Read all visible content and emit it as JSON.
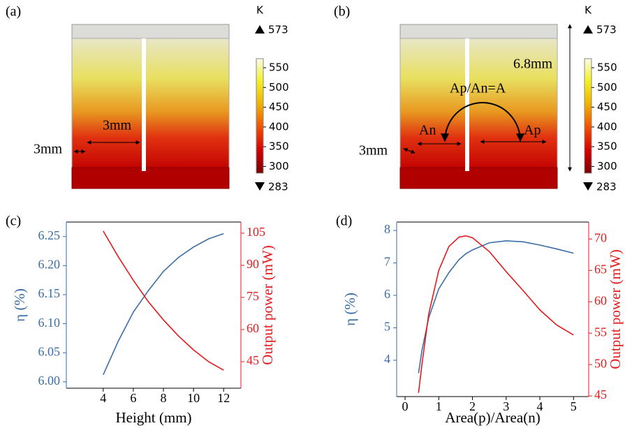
{
  "panels": [
    {
      "label": "(a)",
      "unit": "K",
      "max": 573,
      "min": 283,
      "ticks": [
        300,
        350,
        400,
        450,
        500,
        550
      ],
      "annotations": [
        "3mm",
        "3mm"
      ]
    },
    {
      "label": "(b)",
      "unit": "K",
      "max": 573,
      "min": 283,
      "ticks": [
        300,
        350,
        400,
        450,
        500,
        550
      ],
      "annotations": [
        "3mm",
        "An",
        "Ap",
        "Ap/An=A",
        "6.8mm"
      ]
    }
  ],
  "chart_data": [
    {
      "type": "line",
      "label": "(c)",
      "xlabel": "Height (mm)",
      "ylabel": "η (%)",
      "y2label": "Output power (mW)",
      "x": [
        4,
        5,
        6,
        7,
        8,
        9,
        10,
        11,
        12
      ],
      "series": [
        {
          "color": "#3a6ea5",
          "values": [
            6.012,
            6.07,
            6.12,
            6.157,
            6.19,
            6.214,
            6.232,
            6.246,
            6.255
          ]
        },
        {
          "color": "#e41a1c",
          "axis": "y2",
          "values": [
            106,
            94,
            83,
            73,
            64.5,
            57,
            50.5,
            45,
            41
          ]
        }
      ],
      "xlim": [
        1.55,
        13.15
      ],
      "xticks": [
        4,
        6,
        8,
        10,
        12
      ],
      "ylim": [
        5.989,
        6.275
      ],
      "yticks": [
        {
          "value": 6.0,
          "label": "6.00"
        },
        {
          "value": 6.05,
          "label": "6.05"
        },
        {
          "value": 6.1,
          "label": "6.10"
        },
        {
          "value": 6.15,
          "label": "6.15"
        },
        {
          "value": 6.2,
          "label": "6.20"
        },
        {
          "value": 6.25,
          "label": "6.25"
        }
      ],
      "y2lim": [
        32.6,
        110.2
      ],
      "y2ticks": [
        45,
        60,
        75,
        90,
        105
      ]
    },
    {
      "type": "line",
      "label": "(d)",
      "xlabel": "Area(p)/Area(n)",
      "ylabel": "η (%)",
      "y2label": "Output power (mW)",
      "x": [
        0.4,
        0.5,
        0.7,
        1,
        1.3,
        1.6,
        1.8,
        2,
        2.5,
        3,
        3.5,
        4,
        4.5,
        5
      ],
      "series": [
        {
          "color": "#3a6ea5",
          "values": [
            3.6,
            4.3,
            5.3,
            6.2,
            6.7,
            7.1,
            7.28,
            7.4,
            7.62,
            7.68,
            7.65,
            7.55,
            7.43,
            7.3
          ]
        },
        {
          "color": "#e41a1c",
          "axis": "y2",
          "values": [
            45.5,
            50,
            58,
            65,
            68.8,
            70.3,
            70.5,
            70.2,
            68,
            64.8,
            61.8,
            58.7,
            56.3,
            54.7
          ]
        }
      ],
      "xlim": [
        -0.25,
        5.45
      ],
      "xticks": [
        0,
        1,
        2,
        3,
        4,
        5
      ],
      "ylim": [
        2.88,
        8.26
      ],
      "yticks": [
        4,
        5,
        6,
        7,
        8
      ],
      "y2lim": [
        44.9,
        72.7
      ],
      "y2ticks": [
        45,
        50,
        55,
        60,
        65,
        70
      ]
    }
  ]
}
